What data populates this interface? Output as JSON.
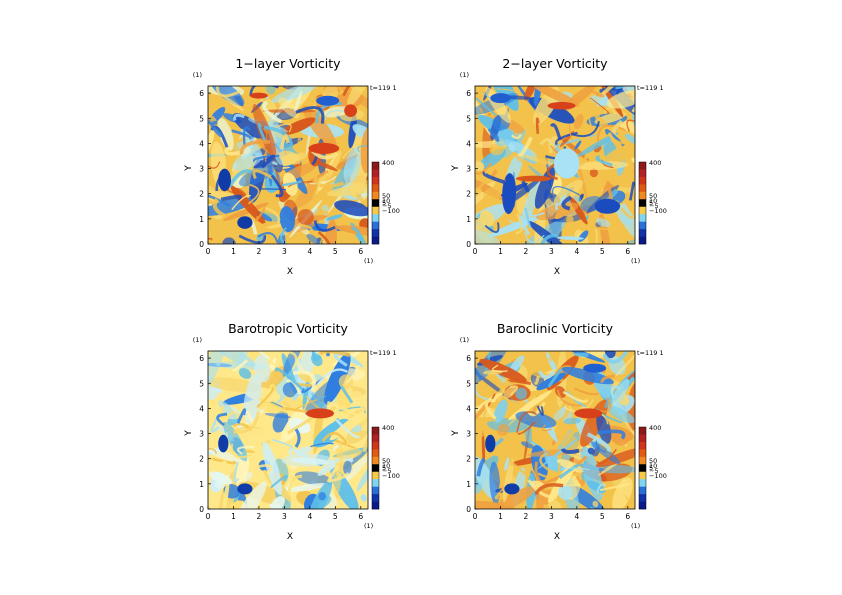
{
  "chart_data": [
    {
      "type": "heatmap",
      "title": "1−layer Vorticity",
      "time_label": "t=119 1",
      "xlabel": "X",
      "ylabel": "Y",
      "x_unit": "(1)",
      "y_unit": "(1)",
      "xlim": [
        0,
        6.283
      ],
      "ylim": [
        0,
        6.283
      ],
      "xticks": [
        "0",
        "1",
        "2",
        "3",
        "4",
        "5",
        "6"
      ],
      "yticks": [
        "0",
        "1",
        "2",
        "3",
        "4",
        "5",
        "6"
      ],
      "colorbar": {
        "top_label": "400",
        "labels": [
          "50",
          "10",
          "5",
          "−5",
          "−100"
        ],
        "colors": [
          "#8b1a1a",
          "#b22222",
          "#d0341a",
          "#e05a14",
          "#f08a1e",
          "#000000",
          "#f7c948",
          "#7fd4f0",
          "#2a6fd6",
          "#1133aa",
          "#0a1a88"
        ]
      },
      "vortices": [
        {
          "x": 0.65,
          "y": 2.55,
          "rx": 0.25,
          "ry": 0.45,
          "color": "#103ca8"
        },
        {
          "x": 1.45,
          "y": 0.85,
          "rx": 0.3,
          "ry": 0.25,
          "color": "#103ca8"
        },
        {
          "x": 4.55,
          "y": 3.8,
          "rx": 0.6,
          "ry": 0.22,
          "color": "#d8401a"
        },
        {
          "x": 4.7,
          "y": 5.7,
          "rx": 0.45,
          "ry": 0.2,
          "color": "#1f5fd0"
        },
        {
          "x": 2.0,
          "y": 5.9,
          "rx": 0.35,
          "ry": 0.12,
          "color": "#d8401a"
        },
        {
          "x": 5.6,
          "y": 5.3,
          "rx": 0.25,
          "ry": 0.25,
          "color": "#d8401a"
        }
      ],
      "palette": [
        "#f3c24b",
        "#ffe88a",
        "#f0a040",
        "#d8581c",
        "#5fbfe8",
        "#a8e2f4",
        "#2f7ee0",
        "#1a4cc0",
        "#e8f6d8",
        "#f7d870"
      ],
      "seed": 11
    },
    {
      "type": "heatmap",
      "title": "2−layer Vorticity",
      "time_label": "t=119 1",
      "xlabel": "X",
      "ylabel": "Y",
      "x_unit": "(1)",
      "y_unit": "(1)",
      "xlim": [
        0,
        6.283
      ],
      "ylim": [
        0,
        6.283
      ],
      "xticks": [
        "0",
        "1",
        "2",
        "3",
        "4",
        "5",
        "6"
      ],
      "yticks": [
        "0",
        "1",
        "2",
        "3",
        "4",
        "5",
        "6"
      ],
      "colorbar": {
        "top_label": "400",
        "labels": [
          "50",
          "10",
          "5",
          "−5",
          "−100"
        ],
        "colors": [
          "#8b1a1a",
          "#b22222",
          "#d0341a",
          "#e05a14",
          "#f08a1e",
          "#000000",
          "#f7c948",
          "#7fd4f0",
          "#2a6fd6",
          "#1133aa",
          "#0a1a88"
        ]
      },
      "vortices": [
        {
          "x": 3.4,
          "y": 5.5,
          "rx": 0.55,
          "ry": 0.15,
          "color": "#d8401a"
        },
        {
          "x": 2.3,
          "y": 2.6,
          "rx": 0.7,
          "ry": 0.12,
          "color": "#d8581c"
        },
        {
          "x": 3.6,
          "y": 3.2,
          "rx": 0.5,
          "ry": 0.6,
          "color": "#a8e2f4"
        },
        {
          "x": 1.0,
          "y": 5.8,
          "rx": 0.4,
          "ry": 0.2,
          "color": "#1f5fd0"
        },
        {
          "x": 5.2,
          "y": 1.5,
          "rx": 0.5,
          "ry": 0.3,
          "color": "#1a4cc0"
        }
      ],
      "palette": [
        "#f3c24b",
        "#ffe88a",
        "#f0a040",
        "#d8581c",
        "#5fbfe8",
        "#a8e2f4",
        "#2f7ee0",
        "#1a4cc0",
        "#7fd0f0",
        "#f7d870"
      ],
      "seed": 23
    },
    {
      "type": "heatmap",
      "title": "Barotropic Vorticity",
      "time_label": "t=119 1",
      "xlabel": "X",
      "ylabel": "Y",
      "x_unit": "(1)",
      "y_unit": "(1)",
      "xlim": [
        0,
        6.283
      ],
      "ylim": [
        0,
        6.283
      ],
      "xticks": [
        "0",
        "1",
        "2",
        "3",
        "4",
        "5",
        "6"
      ],
      "yticks": [
        "0",
        "1",
        "2",
        "3",
        "4",
        "5",
        "6"
      ],
      "colorbar": {
        "top_label": "400",
        "labels": [
          "50",
          "10",
          "5",
          "−5",
          "−100"
        ],
        "colors": [
          "#8b1a1a",
          "#b22222",
          "#d0341a",
          "#e05a14",
          "#f08a1e",
          "#000000",
          "#f7c948",
          "#7fd4f0",
          "#2a6fd6",
          "#1133aa",
          "#0a1a88"
        ]
      },
      "vortices": [
        {
          "x": 0.6,
          "y": 2.6,
          "rx": 0.2,
          "ry": 0.35,
          "color": "#103ca8"
        },
        {
          "x": 1.45,
          "y": 0.8,
          "rx": 0.3,
          "ry": 0.22,
          "color": "#103ca8"
        },
        {
          "x": 4.4,
          "y": 3.8,
          "rx": 0.55,
          "ry": 0.2,
          "color": "#d8401a"
        }
      ],
      "palette": [
        "#ffe88a",
        "#fff4b8",
        "#f3c24b",
        "#a8e2f4",
        "#5fbfe8",
        "#cdeefa",
        "#2f7ee0",
        "#f7d870",
        "#e8f8f0",
        "#ffe070"
      ],
      "seed": 37
    },
    {
      "type": "heatmap",
      "title": "Baroclinic Vorticity",
      "time_label": "t=119 1",
      "xlabel": "X",
      "ylabel": "Y",
      "x_unit": "(1)",
      "y_unit": "(1)",
      "xlim": [
        0,
        6.283
      ],
      "ylim": [
        0,
        6.283
      ],
      "xticks": [
        "0",
        "1",
        "2",
        "3",
        "4",
        "5",
        "6"
      ],
      "yticks": [
        "0",
        "1",
        "2",
        "3",
        "4",
        "5",
        "6"
      ],
      "colorbar": {
        "top_label": "400",
        "labels": [
          "50",
          "10",
          "5",
          "−5",
          "−100"
        ],
        "colors": [
          "#8b1a1a",
          "#b22222",
          "#d0341a",
          "#e05a14",
          "#f08a1e",
          "#000000",
          "#f7c948",
          "#7fd4f0",
          "#2a6fd6",
          "#1133aa",
          "#0a1a88"
        ]
      },
      "vortices": [
        {
          "x": 0.6,
          "y": 2.6,
          "rx": 0.2,
          "ry": 0.35,
          "color": "#103ca8"
        },
        {
          "x": 1.45,
          "y": 0.8,
          "rx": 0.3,
          "ry": 0.22,
          "color": "#103ca8"
        },
        {
          "x": 4.45,
          "y": 3.8,
          "rx": 0.55,
          "ry": 0.2,
          "color": "#d8401a"
        },
        {
          "x": 4.7,
          "y": 5.6,
          "rx": 0.45,
          "ry": 0.18,
          "color": "#1f5fd0"
        }
      ],
      "palette": [
        "#f3c24b",
        "#ffe88a",
        "#f0a040",
        "#5fbfe8",
        "#a8e2f4",
        "#2f7ee0",
        "#1a4cc0",
        "#7fd0f0",
        "#d8581c",
        "#f7d870"
      ],
      "seed": 53
    }
  ]
}
